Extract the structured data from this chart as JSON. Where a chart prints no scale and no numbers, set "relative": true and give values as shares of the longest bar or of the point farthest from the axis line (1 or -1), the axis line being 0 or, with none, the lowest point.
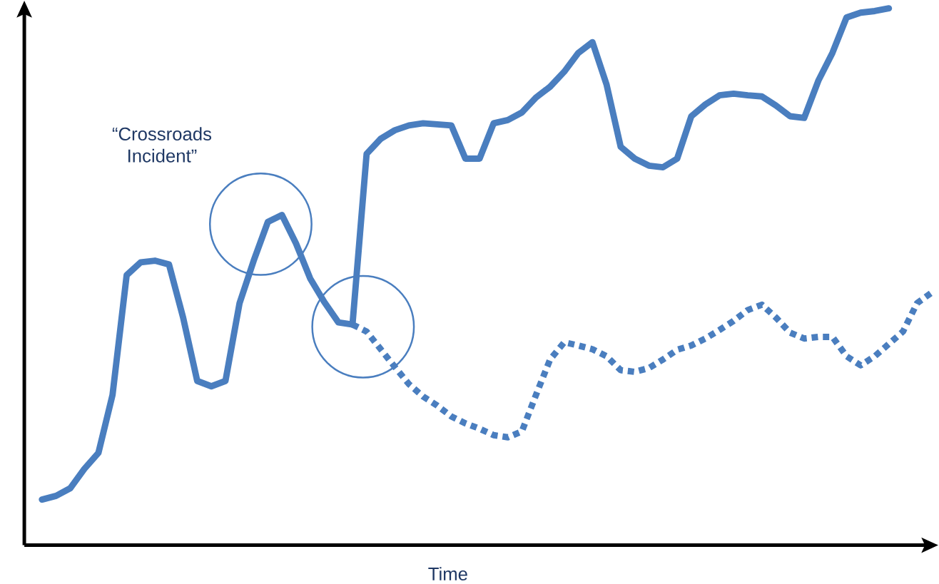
{
  "chart_data": {
    "type": "line",
    "relative": true,
    "xlabel": "Time",
    "marker": "none",
    "annotations": [
      "“Crossroads Incident”"
    ],
    "categories": [
      null,
      null,
      null,
      null,
      null,
      null,
      null,
      null,
      null,
      null,
      null,
      null,
      null,
      null,
      null,
      null,
      null,
      null,
      null,
      null,
      null,
      null,
      null,
      null,
      null,
      null,
      null,
      null,
      null,
      null,
      null,
      null,
      null,
      null,
      null,
      null,
      null,
      null,
      null,
      null,
      null,
      null,
      null,
      null,
      null,
      null,
      null,
      null,
      null,
      null,
      null,
      null,
      null,
      null,
      null,
      null,
      null,
      null,
      null,
      null,
      null,
      null,
      null,
      null
    ],
    "series": [
      {
        "color": "#4a7ebf",
        "line_style": "solid",
        "values": [
          0.085,
          0.092,
          0.106,
          0.142,
          0.172,
          0.28,
          0.503,
          0.527,
          0.53,
          0.523,
          0.424,
          0.306,
          0.296,
          0.306,
          0.451,
          0.53,
          0.602,
          0.615,
          0.562,
          0.497,
          0.453,
          0.415,
          0.411,
          0.729,
          0.757,
          0.773,
          0.782,
          0.786,
          0.784,
          0.782,
          0.72,
          0.72,
          0.786,
          0.792,
          0.806,
          0.834,
          0.854,
          0.882,
          0.917,
          0.937,
          0.858,
          0.742,
          0.72,
          0.707,
          0.704,
          0.72,
          0.799,
          0.821,
          0.838,
          0.841,
          0.838,
          0.836,
          0.819,
          0.799,
          0.796,
          0.865,
          0.917,
          0.983,
          0.992,
          0.995,
          1,
          null,
          null,
          null
        ]
      },
      {
        "color": "#4a7ebf",
        "line_style": "dotted",
        "values": [
          null,
          null,
          null,
          null,
          null,
          null,
          null,
          null,
          null,
          null,
          null,
          null,
          null,
          null,
          null,
          null,
          null,
          null,
          null,
          null,
          null,
          null,
          0.411,
          0.398,
          0.365,
          0.332,
          0.3,
          0.277,
          0.26,
          0.24,
          0.227,
          0.217,
          0.205,
          0.201,
          0.212,
          0.28,
          0.346,
          0.378,
          0.372,
          0.365,
          0.352,
          0.326,
          0.323,
          0.33,
          0.346,
          0.364,
          0.372,
          0.385,
          0.401,
          0.418,
          0.438,
          0.448,
          0.424,
          0.396,
          0.385,
          0.388,
          0.388,
          0.352,
          0.335,
          0.352,
          0.375,
          0.398,
          0.451,
          0.47
        ]
      }
    ]
  }
}
